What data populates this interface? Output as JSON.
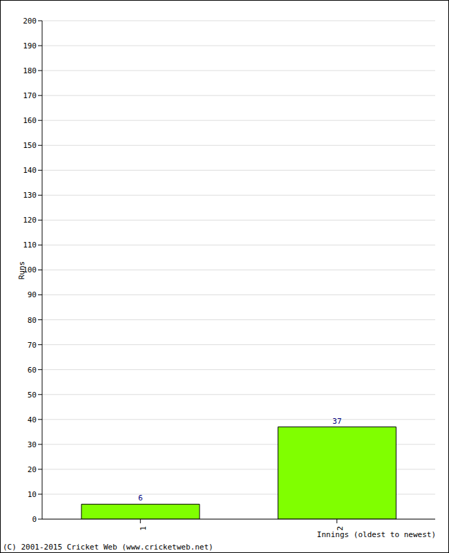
{
  "chart_data": {
    "type": "bar",
    "categories": [
      "1",
      "2"
    ],
    "values": [
      6,
      37
    ],
    "color": "#80ff00",
    "ylim": [
      0,
      200
    ],
    "yticks": [
      0,
      10,
      20,
      30,
      40,
      50,
      60,
      70,
      80,
      90,
      100,
      110,
      120,
      130,
      140,
      150,
      160,
      170,
      180,
      190,
      200
    ],
    "grid": true,
    "data_labels": true,
    "x_label": "Innings (oldest to newest)",
    "y_label": "Runs",
    "footer": "(C) 2001-2015 Cricket Web (www.cricketweb.net)"
  }
}
